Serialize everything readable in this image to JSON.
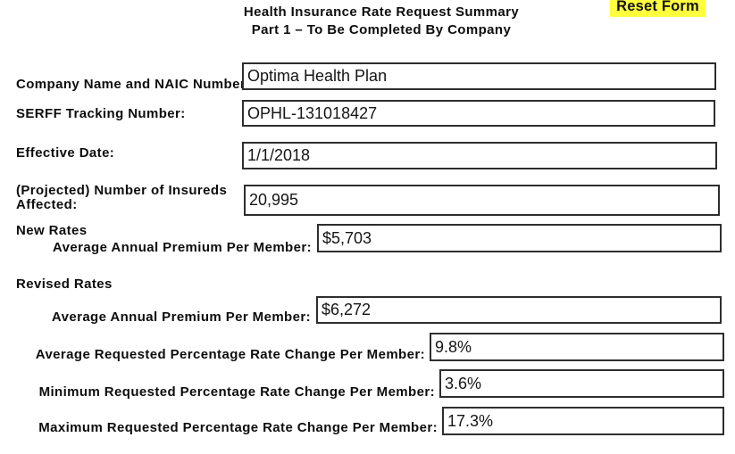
{
  "title": {
    "line1": "Health Insurance Rate Request Summary",
    "line2": "Part 1 – To Be Completed By Company"
  },
  "toolbar": {
    "reset_label": "Reset Form"
  },
  "colors": {
    "reset_button_bg": "#ffff3d",
    "field_border": "#2e2e2e",
    "text": "#0d0d0d"
  },
  "sections": {
    "new_rates": "New Rates",
    "revised_rates": "Revised Rates"
  },
  "fields": {
    "company": {
      "label": "Company Name and NAIC Number:",
      "value": "Optima Health Plan"
    },
    "serff": {
      "label": "SERFF Tracking Number:",
      "value": "OPHL-131018427"
    },
    "effective_date": {
      "label": "Effective Date:",
      "value": "1/1/2018"
    },
    "insureds": {
      "label": "(Projected) Number of Insureds Affected:",
      "value": "20,995"
    },
    "new_premium": {
      "label": "Average Annual Premium Per Member:",
      "value": "$5,703"
    },
    "revised_premium": {
      "label": "Average Annual Premium Per Member:",
      "value": "$6,272"
    },
    "avg_change": {
      "label": "Average Requested Percentage Rate Change Per Member:",
      "value": "9.8%"
    },
    "min_change": {
      "label": "Minimum Requested Percentage Rate Change Per Member:",
      "value": "3.6%"
    },
    "max_change": {
      "label": "Maximum Requested Percentage Rate Change Per Member:",
      "value": "17.3%"
    }
  }
}
